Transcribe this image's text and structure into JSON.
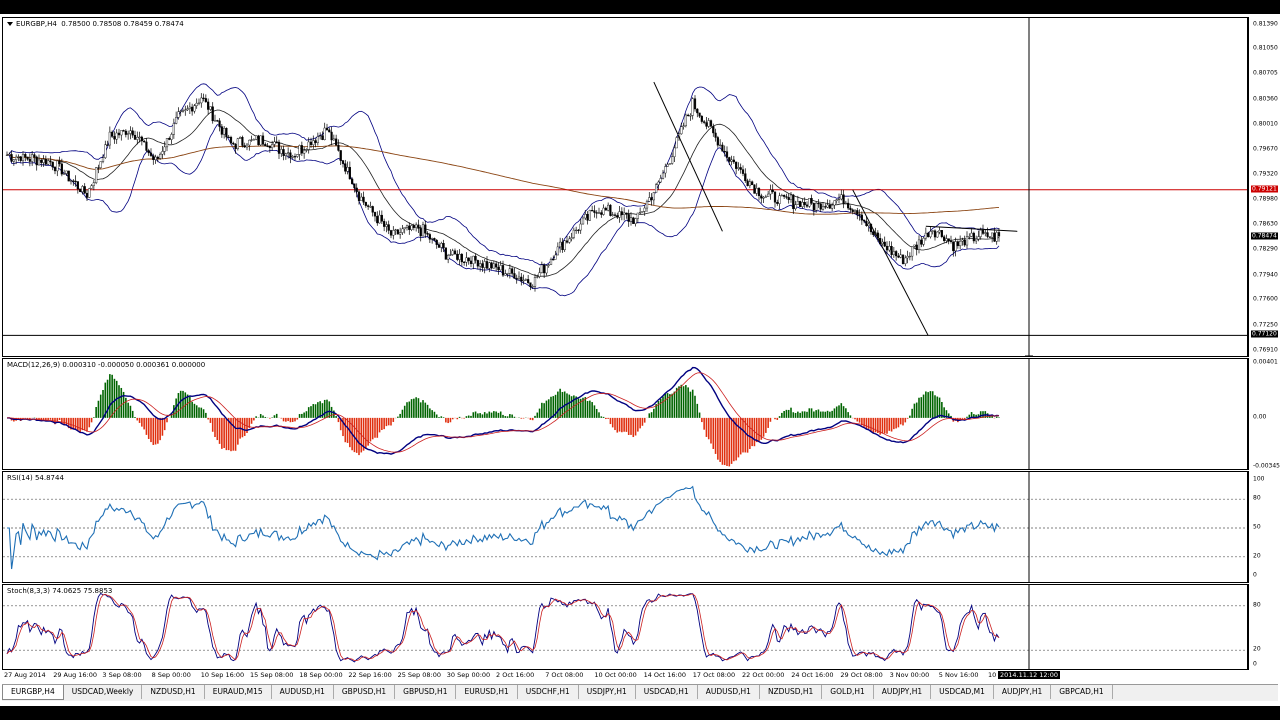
{
  "window": {
    "symbol_label": "EURGBP,H4",
    "ohlc_label": "0.78500 0.78508 0.78459 0.78474"
  },
  "colors": {
    "bull": "#000000",
    "bear": "#000000",
    "bands": "#000080",
    "ma_brown": "#8b4513",
    "hline_red": "#cc0000",
    "macd_hist_pos": "#006400",
    "macd_hist_neg": "#e03010",
    "macd_line": "#000080",
    "macd_signal": "#cc2020",
    "rsi": "#1e6fb5",
    "stoch_main": "#000080",
    "stoch_signal": "#cc2020"
  },
  "price_axis": {
    "labels": [
      "0.81390",
      "0.81050",
      "0.80705",
      "0.80360",
      "0.80010",
      "0.79670",
      "0.79320",
      "0.78980",
      "0.78630",
      "0.78290",
      "0.77940",
      "0.77600",
      "0.77250",
      "0.76910"
    ],
    "hline_tag": "0.79121",
    "bid_tag": "0.78474",
    "low_tag": "0.77120",
    "range": [
      0.7681,
      0.8148
    ]
  },
  "macd": {
    "title": "MACD(12,26,9) 0.000310 -0.000050 0.000361 0.000000",
    "axis_labels": [
      "0.00401",
      "0.00",
      "-0.00345"
    ],
    "range": [
      -0.0037,
      0.0041
    ]
  },
  "rsi": {
    "title": "RSI(14) 54.8744",
    "axis_labels": [
      "100",
      "80",
      "50",
      "20",
      "0"
    ],
    "levels": [
      80,
      50,
      20
    ]
  },
  "stoch": {
    "title": "Stoch(8,3,3) 74.0625 75.8853",
    "axis_labels": [
      "80",
      "20",
      "0"
    ],
    "levels": [
      80,
      20
    ]
  },
  "time_axis": {
    "labels": [
      "27 Aug 2014",
      "29 Aug 16:00",
      "3 Sep 08:00",
      "8 Sep 00:00",
      "10 Sep 16:00",
      "15 Sep 08:00",
      "18 Sep 00:00",
      "22 Sep 16:00",
      "25 Sep 08:00",
      "30 Sep 00:00",
      "2 Oct 16:00",
      "7 Oct 08:00",
      "10 Oct 00:00",
      "14 Oct 16:00",
      "17 Oct 08:00",
      "22 Oct 00:00",
      "24 Oct 16:00",
      "29 Oct 08:00",
      "3 Nov 00:00",
      "5 Nov 16:00",
      "10"
    ],
    "cursor_tag": "2014.11.12 12:00"
  },
  "tabs": [
    "EURGBP,H4",
    "USDCAD,Weekly",
    "NZDUSD,H1",
    "EURAUD,M15",
    "AUDUSD,H1",
    "GBPUSD,H1",
    "GBPUSD,H1",
    "EURUSD,H1",
    "USDCHF,H1",
    "USDJPY,H1",
    "USDCAD,H1",
    "AUDUSD,H1",
    "NZDUSD,H1",
    "GOLD,H1",
    "AUDJPY,H1",
    "USDCAD,M1",
    "AUDJPY,H1",
    "GBPCAD,H1"
  ],
  "chart_data": {
    "type": "line",
    "price_keypoints": {
      "x_index": [
        0,
        20,
        35,
        45,
        55,
        65,
        75,
        85,
        98,
        112,
        125,
        140,
        155,
        168,
        180,
        192,
        205,
        218,
        230,
        242,
        250,
        258,
        265,
        275,
        285,
        300,
        315,
        330,
        345,
        355,
        365,
        372,
        380,
        392,
        405,
        415,
        425,
        434
      ],
      "close": [
        0.796,
        0.795,
        0.7905,
        0.7985,
        0.7995,
        0.795,
        0.801,
        0.804,
        0.7975,
        0.798,
        0.796,
        0.7995,
        0.79,
        0.785,
        0.786,
        0.7825,
        0.7815,
        0.78,
        0.7785,
        0.7835,
        0.786,
        0.7885,
        0.788,
        0.787,
        0.792,
        0.803,
        0.796,
        0.7905,
        0.7895,
        0.789,
        0.79,
        0.7885,
        0.7845,
        0.7815,
        0.786,
        0.7835,
        0.785,
        0.7847
      ]
    },
    "horizontal_line": 0.79121,
    "low_line": 0.7712
  }
}
